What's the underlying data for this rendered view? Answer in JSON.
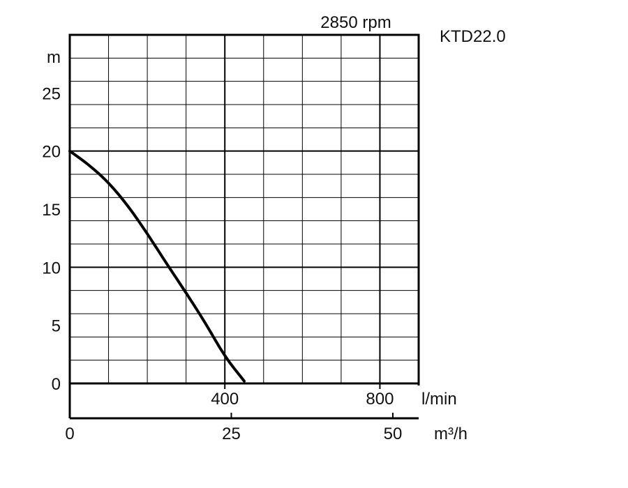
{
  "chart_data": {
    "type": "line",
    "title": "KTD22.0",
    "subtitle": "2850 rpm",
    "ylabel": "m",
    "xlabel_primary": "l/min",
    "xlabel_secondary": "m³/h",
    "ylim": [
      0,
      30
    ],
    "xlim_lmin": [
      0,
      900
    ],
    "xlim_m3h": [
      0,
      54
    ],
    "yticks": [
      "0",
      "5",
      "10",
      "15",
      "20",
      "25"
    ],
    "xticks_lmin": [
      "400",
      "800"
    ],
    "xticks_m3h": [
      "0",
      "25",
      "50"
    ],
    "grid": true,
    "series": [
      {
        "color": "#000000",
        "x": [
          0,
          50,
          100,
          150,
          200,
          250,
          300,
          350,
          400,
          450
        ],
        "y": [
          20,
          18.8,
          17.3,
          15.3,
          12.9,
          10.3,
          7.8,
          5.2,
          2.3,
          0.2
        ]
      }
    ]
  }
}
